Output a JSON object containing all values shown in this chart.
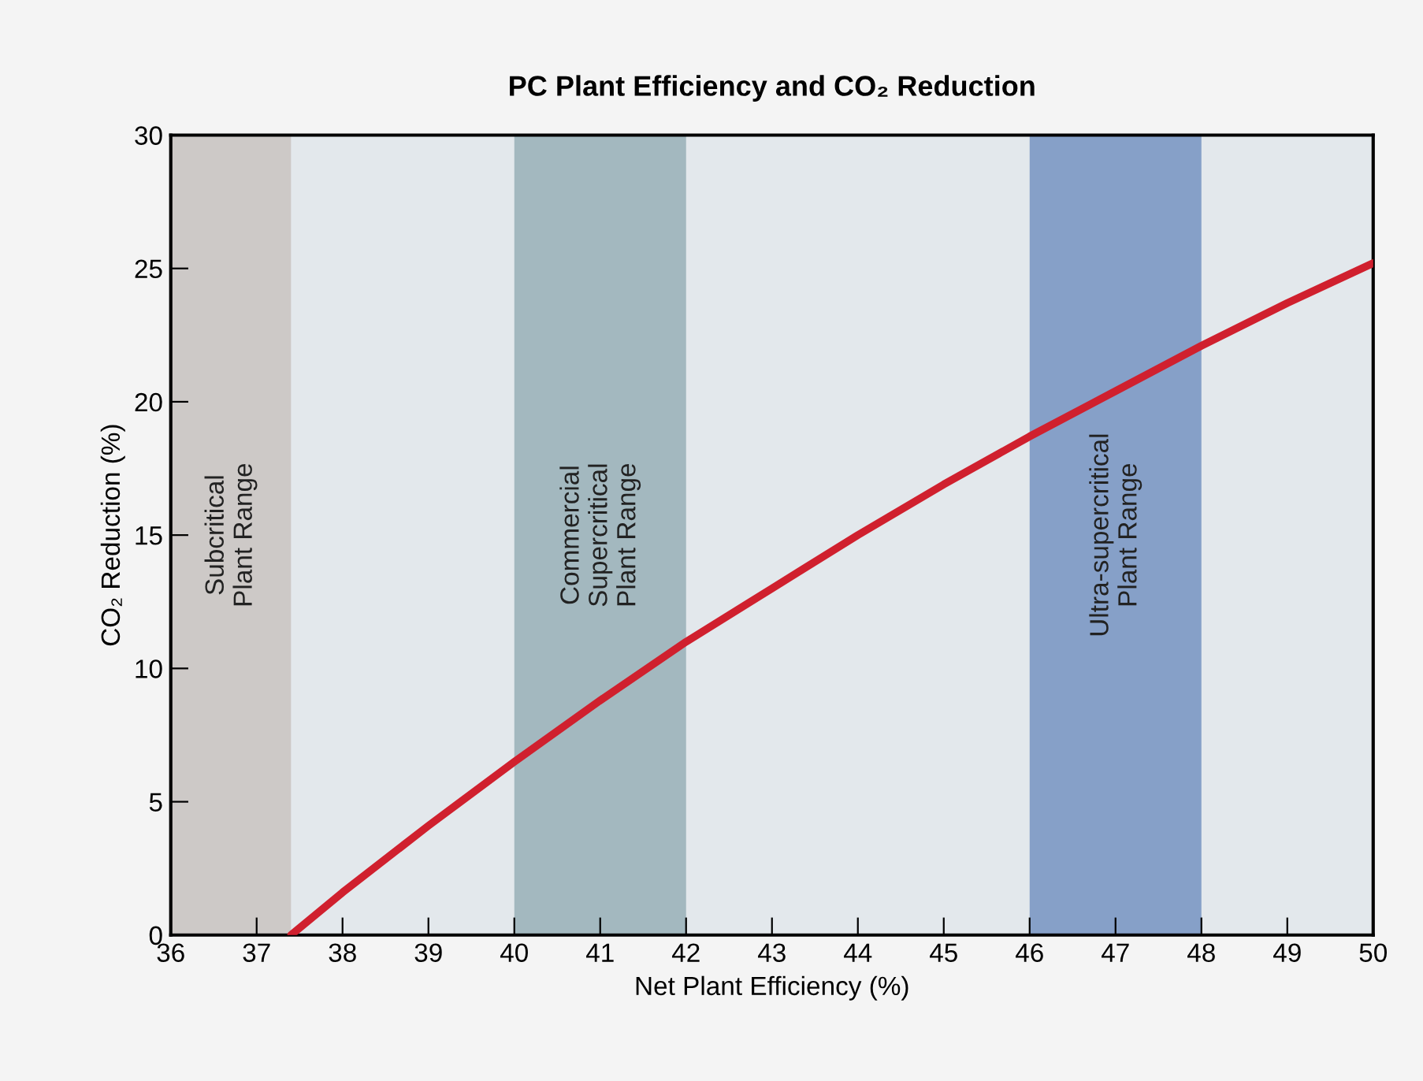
{
  "chart_data": {
    "type": "line",
    "title": "PC Plant Efficiency and CO₂ Reduction",
    "xlabel": "Net Plant Efficiency (%)",
    "ylabel": "CO₂ Reduction (%)",
    "x": [
      37.4,
      38,
      39,
      40,
      41,
      42,
      43,
      44,
      45,
      46,
      47,
      48,
      49,
      50
    ],
    "series": [
      {
        "color": "#d0202e",
        "values": [
          0,
          1.6,
          4.1,
          6.5,
          8.8,
          11.0,
          13.0,
          15.0,
          16.9,
          18.7,
          20.4,
          22.1,
          23.7,
          25.2
        ]
      }
    ],
    "xlim": [
      36,
      50
    ],
    "ylim": [
      0,
      30
    ],
    "xticks": [
      36,
      37,
      38,
      39,
      40,
      41,
      42,
      43,
      44,
      45,
      46,
      47,
      48,
      49,
      50
    ],
    "yticks": [
      0,
      5,
      10,
      15,
      20,
      25,
      30
    ],
    "bands": [
      {
        "axis": "x",
        "from": 36,
        "to": 37.4,
        "label": "Subcritical\nPlant Range",
        "color": "#cdc9c7"
      },
      {
        "axis": "x",
        "from": 40,
        "to": 42,
        "label": "Commercial\nSupercritical\nPlant Range",
        "color": "#a3b8bf"
      },
      {
        "axis": "x",
        "from": 46,
        "to": 48,
        "label": "Ultra-supercritical\nPlant Range",
        "color": "#86a0c8"
      }
    ],
    "grid": false,
    "legend": false,
    "marker": "none",
    "line_style": "solid"
  }
}
